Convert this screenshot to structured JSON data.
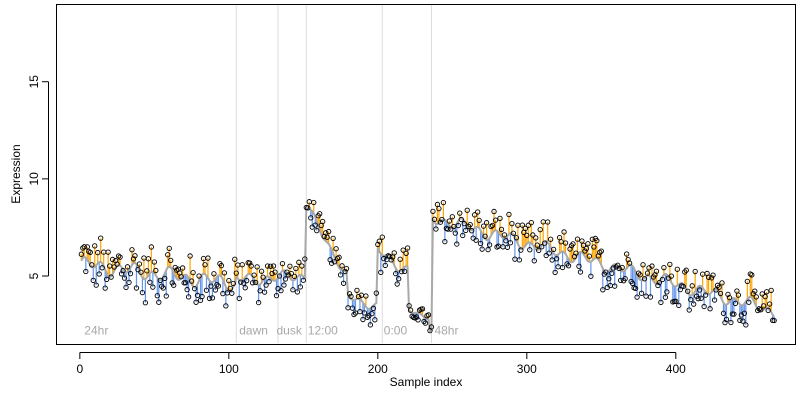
{
  "chart_data": {
    "type": "scatter",
    "title": "",
    "xlabel": "Sample index",
    "ylabel": "Expression",
    "xlim": [
      -16,
      480
    ],
    "ylim": [
      1.5,
      19
    ],
    "xticks": [
      0,
      100,
      200,
      300,
      400
    ],
    "yticks": [
      5,
      10,
      15
    ],
    "grid": false,
    "legend": "none",
    "colors": {
      "points_stroke": "#000000",
      "fitted_line": "#a9a9a9",
      "residual_above": "#ffa500",
      "residual_below": "#6495ed",
      "vertical_markers": "#dcdcdc",
      "annotation_text": "#a8a8a8"
    },
    "vertical_markers": [
      105,
      133,
      152,
      203,
      236
    ],
    "annotations": [
      {
        "label": "24hr",
        "x": 3,
        "y": 2.0
      },
      {
        "label": "dawn",
        "x": 107,
        "y": 2.0
      },
      {
        "label": "dusk",
        "x": 132,
        "y": 2.0
      },
      {
        "label": "12:00",
        "x": 153,
        "y": 2.0
      },
      {
        "label": "0:00",
        "x": 204,
        "y": 2.0
      },
      {
        "label": "48hr",
        "x": 238,
        "y": 2.0
      }
    ],
    "segments": [
      {
        "x": [
          1,
          104
        ],
        "y": [
          5.6,
          4.6
        ],
        "amplitude": 1.3,
        "noise": 0.35
      },
      {
        "x": [
          105,
          151
        ],
        "y": [
          4.8,
          5.0
        ],
        "amplitude": 1.0,
        "noise": 0.3
      },
      {
        "x": [
          152,
          179
        ],
        "y": [
          8.6,
          5.0
        ],
        "amplitude": 0.8,
        "noise": 0.3
      },
      {
        "x": [
          180,
          199
        ],
        "y": [
          4.0,
          3.4
        ],
        "amplitude": 0.8,
        "noise": 0.3
      },
      {
        "x": [
          200,
          220
        ],
        "y": [
          6.4,
          5.2
        ],
        "amplitude": 1.0,
        "noise": 0.3
      },
      {
        "x": [
          221,
          234
        ],
        "y": [
          3.2,
          2.9
        ],
        "amplitude": 0.4,
        "noise": 0.2
      },
      {
        "x": [
          235,
          236
        ],
        "y": [
          2.1,
          2.3
        ],
        "amplitude": 0.1,
        "noise": 0.05
      },
      {
        "x": [
          237,
          466
        ],
        "y": [
          8.0,
          3.2
        ],
        "amplitude": 1.1,
        "noise": 0.3
      }
    ]
  }
}
